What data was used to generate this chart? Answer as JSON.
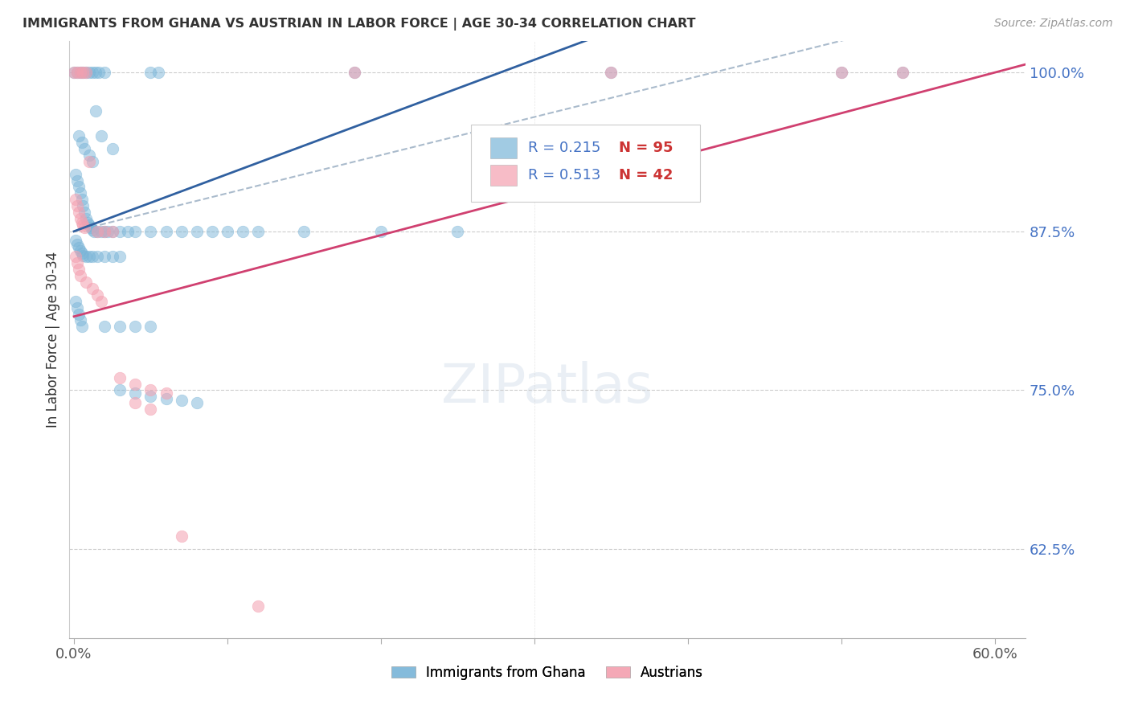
{
  "title": "IMMIGRANTS FROM GHANA VS AUSTRIAN IN LABOR FORCE | AGE 30-34 CORRELATION CHART",
  "source": "Source: ZipAtlas.com",
  "ylabel": "In Labor Force | Age 30-34",
  "xlim": [
    -0.003,
    0.62
  ],
  "ylim": [
    0.555,
    1.025
  ],
  "yticks": [
    0.625,
    0.75,
    0.875,
    1.0
  ],
  "ytick_labels": [
    "62.5%",
    "75.0%",
    "87.5%",
    "100.0%"
  ],
  "xtick_labels": [
    "0.0%",
    "60.0%"
  ],
  "xtick_pos": [
    0.0,
    0.6
  ],
  "legend_r1": "R = 0.215",
  "legend_n1": "N = 95",
  "legend_r2": "R = 0.513",
  "legend_n2": "N = 42",
  "blue_color": "#7ab5d8",
  "pink_color": "#f4a0b0",
  "blue_line_color": "#3060a0",
  "pink_line_color": "#d04070",
  "dashed_color": "#aabbcc",
  "label1": "Immigrants from Ghana",
  "label2": "Austrians",
  "r_color": "#4472c4",
  "n_color": "#cc3333",
  "grid_color": "#cccccc",
  "right_label_color": "#4472c4"
}
